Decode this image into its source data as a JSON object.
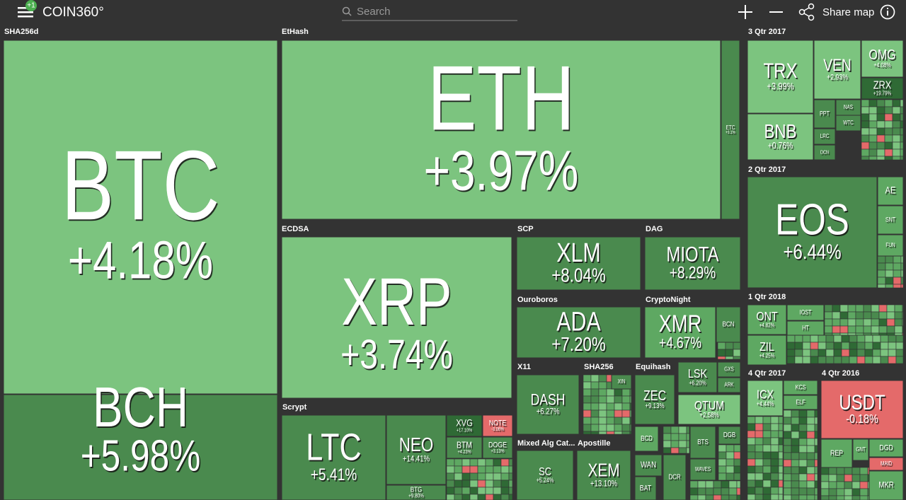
{
  "header": {
    "badge": "+1",
    "logo": "COIN360°",
    "search": "Search",
    "share": "Share map"
  },
  "groups": [
    {
      "label": "SHA256d",
      "tiles": [
        {
          "symbol": "BTC",
          "change": "+4.18%"
        },
        {
          "symbol": "BCH",
          "change": "+5.98%"
        }
      ]
    },
    {
      "label": "EtHash",
      "tiles": [
        {
          "symbol": "ETH",
          "change": "+3.97%"
        },
        {
          "symbol": "ETC",
          "change": "+3.1%"
        }
      ]
    },
    {
      "label": "ECDSA",
      "tiles": [
        {
          "symbol": "XRP",
          "change": "+3.74%"
        }
      ]
    },
    {
      "label": "SCP",
      "tiles": [
        {
          "symbol": "XLM",
          "change": "+8.04%"
        }
      ]
    },
    {
      "label": "DAG",
      "tiles": [
        {
          "symbol": "MIOTA",
          "change": "+8.29%"
        }
      ]
    },
    {
      "label": "Ouroboros",
      "tiles": [
        {
          "symbol": "ADA",
          "change": "+7.20%"
        }
      ]
    },
    {
      "label": "CryptoNight",
      "tiles": [
        {
          "symbol": "XMR",
          "change": "+4.67%"
        },
        {
          "symbol": "BCN"
        }
      ]
    },
    {
      "label": "Scrypt",
      "tiles": [
        {
          "symbol": "LTC",
          "change": "+5.41%"
        },
        {
          "symbol": "NEO",
          "change": "+14.41%"
        },
        {
          "symbol": "BTG",
          "change": "+9.80%"
        },
        {
          "symbol": "XVG",
          "change": "+17.10%"
        },
        {
          "symbol": "NOTE",
          "change": "-3.06%"
        },
        {
          "symbol": "BTM",
          "change": "+4.23%"
        },
        {
          "symbol": "DOGE",
          "change": "+3.13%"
        }
      ]
    },
    {
      "label": "X11",
      "tiles": [
        {
          "symbol": "DASH",
          "change": "+6.27%"
        }
      ]
    },
    {
      "label": "SHA256",
      "tiles": [
        {
          "symbol": "XIN"
        }
      ]
    },
    {
      "label": "Equihash",
      "tiles": [
        {
          "symbol": "ZEC",
          "change": "+9.13%"
        }
      ]
    },
    {
      "tiles": [
        {
          "symbol": "LSK",
          "change": "+6.20%"
        },
        {
          "symbol": "QTUM",
          "change": "+2.58%"
        },
        {
          "symbol": "GXS"
        },
        {
          "symbol": "ARK"
        },
        {
          "symbol": "BTS"
        },
        {
          "symbol": "DGB"
        },
        {
          "symbol": "WAVES"
        },
        {
          "symbol": "BCD"
        },
        {
          "symbol": "WAN"
        },
        {
          "symbol": "BAT"
        },
        {
          "symbol": "DCR"
        }
      ]
    },
    {
      "label": "Mixed Alg Cat...",
      "tiles": [
        {
          "symbol": "SC",
          "change": "+5.24%"
        }
      ]
    },
    {
      "label": "Apostille",
      "tiles": [
        {
          "symbol": "XEM",
          "change": "+13.10%"
        }
      ]
    },
    {
      "label": "3 Qtr 2017",
      "tiles": [
        {
          "symbol": "TRX",
          "change": "+3.99%"
        },
        {
          "symbol": "VEN",
          "change": "+2.93%"
        },
        {
          "symbol": "OMG",
          "change": "+4.08%"
        },
        {
          "symbol": "ZRX",
          "change": "+19.79%"
        },
        {
          "symbol": "BNB",
          "change": "+0.76%"
        },
        {
          "symbol": "PPT"
        },
        {
          "symbol": "NAS"
        },
        {
          "symbol": "WTC"
        },
        {
          "symbol": "LRC"
        },
        {
          "symbol": "DCN"
        }
      ]
    },
    {
      "label": "2 Qtr 2017",
      "tiles": [
        {
          "symbol": "EOS",
          "change": "+6.44%"
        },
        {
          "symbol": "AE"
        },
        {
          "symbol": "SNT"
        },
        {
          "symbol": "FUN"
        }
      ]
    },
    {
      "label": "1 Qtr 2018",
      "tiles": [
        {
          "symbol": "ONT",
          "change": "+4.82%"
        },
        {
          "symbol": "ZIL",
          "change": "+4.25%"
        },
        {
          "symbol": "IOST"
        },
        {
          "symbol": "HT"
        }
      ]
    },
    {
      "label": "4 Qtr 2017",
      "tiles": [
        {
          "symbol": "ICX",
          "change": "+4.44%"
        },
        {
          "symbol": "KCS"
        },
        {
          "symbol": "ELF"
        }
      ]
    },
    {
      "label": "4 Qtr 2016",
      "tiles": [
        {
          "symbol": "USDT",
          "change": "-0.18%"
        },
        {
          "symbol": "REP"
        },
        {
          "symbol": "GNT"
        },
        {
          "symbol": "DGD"
        },
        {
          "symbol": "MAID"
        },
        {
          "symbol": "MKR"
        }
      ]
    }
  ]
}
